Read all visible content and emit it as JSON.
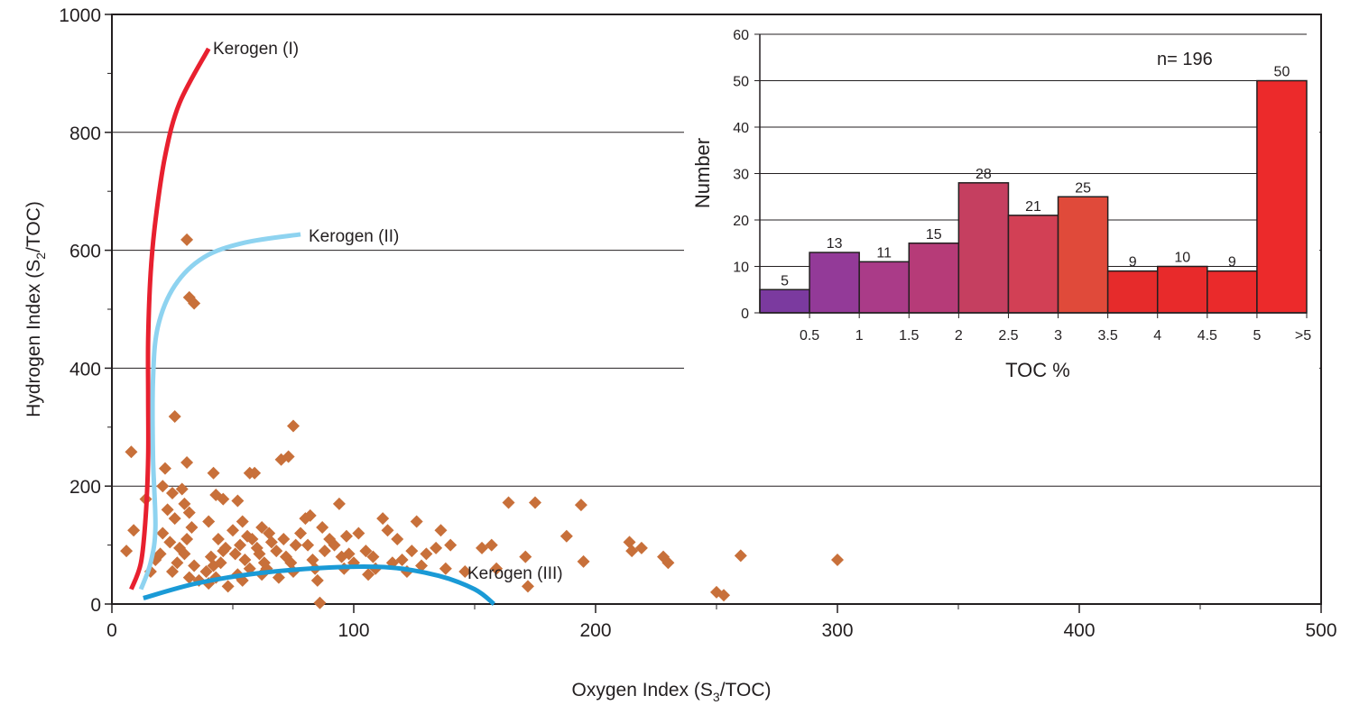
{
  "chart_data": [
    {
      "type": "scatter",
      "xlabel": {
        "prefix": "Oxygen Index (S",
        "sub": "3",
        "suffix": "/TOC)"
      },
      "ylabel": {
        "prefix": "Hydrogen Index (S",
        "sub": "2",
        "suffix": "/TOC)"
      },
      "xlim": [
        0,
        500
      ],
      "ylim": [
        0,
        1000
      ],
      "x_ticks": [
        "0",
        "100",
        "200",
        "300",
        "400",
        "500"
      ],
      "y_ticks": [
        "0",
        "200",
        "400",
        "600",
        "800",
        "1000"
      ],
      "grid": "horizontal",
      "marker_color": "#c8703a",
      "points": [
        [
          8,
          258
        ],
        [
          14,
          178
        ],
        [
          9,
          125
        ],
        [
          6,
          90
        ],
        [
          18,
          75
        ],
        [
          16,
          55
        ],
        [
          22,
          230
        ],
        [
          21,
          200
        ],
        [
          25,
          188
        ],
        [
          23,
          160
        ],
        [
          26,
          145
        ],
        [
          21,
          120
        ],
        [
          24,
          105
        ],
        [
          28,
          95
        ],
        [
          20,
          85
        ],
        [
          27,
          70
        ],
        [
          25,
          55
        ],
        [
          31,
          240
        ],
        [
          29,
          195
        ],
        [
          30,
          170
        ],
        [
          32,
          155
        ],
        [
          33,
          130
        ],
        [
          31,
          110
        ],
        [
          30,
          85
        ],
        [
          34,
          65
        ],
        [
          32,
          45
        ],
        [
          36,
          40
        ],
        [
          42,
          222
        ],
        [
          43,
          185
        ],
        [
          46,
          178
        ],
        [
          40,
          140
        ],
        [
          44,
          110
        ],
        [
          47,
          95
        ],
        [
          41,
          80
        ],
        [
          45,
          70
        ],
        [
          39,
          55
        ],
        [
          43,
          45
        ],
        [
          48,
          30
        ],
        [
          40,
          35
        ],
        [
          42,
          65
        ],
        [
          46,
          90
        ],
        [
          52,
          175
        ],
        [
          54,
          140
        ],
        [
          50,
          125
        ],
        [
          56,
          115
        ],
        [
          53,
          100
        ],
        [
          51,
          85
        ],
        [
          55,
          75
        ],
        [
          57,
          60
        ],
        [
          52,
          50
        ],
        [
          54,
          40
        ],
        [
          58,
          110
        ],
        [
          60,
          95
        ],
        [
          57,
          222
        ],
        [
          59,
          222
        ],
        [
          62,
          130
        ],
        [
          61,
          85
        ],
        [
          63,
          70
        ],
        [
          65,
          120
        ],
        [
          66,
          105
        ],
        [
          68,
          90
        ],
        [
          64,
          60
        ],
        [
          62,
          50
        ],
        [
          69,
          45
        ],
        [
          70,
          245
        ],
        [
          73,
          250
        ],
        [
          71,
          110
        ],
        [
          72,
          80
        ],
        [
          74,
          70
        ],
        [
          75,
          55
        ],
        [
          76,
          100
        ],
        [
          78,
          120
        ],
        [
          75,
          302
        ],
        [
          80,
          145
        ],
        [
          82,
          150
        ],
        [
          81,
          100
        ],
        [
          83,
          75
        ],
        [
          84,
          60
        ],
        [
          85,
          40
        ],
        [
          87,
          130
        ],
        [
          88,
          90
        ],
        [
          86,
          2
        ],
        [
          90,
          110
        ],
        [
          92,
          100
        ],
        [
          94,
          170
        ],
        [
          95,
          80
        ],
        [
          96,
          60
        ],
        [
          98,
          85
        ],
        [
          97,
          115
        ],
        [
          100,
          70
        ],
        [
          102,
          120
        ],
        [
          105,
          90
        ],
        [
          108,
          80
        ],
        [
          106,
          50
        ],
        [
          109,
          60
        ],
        [
          112,
          145
        ],
        [
          114,
          125
        ],
        [
          116,
          70
        ],
        [
          118,
          110
        ],
        [
          120,
          75
        ],
        [
          122,
          55
        ],
        [
          124,
          90
        ],
        [
          126,
          140
        ],
        [
          128,
          65
        ],
        [
          130,
          85
        ],
        [
          134,
          95
        ],
        [
          136,
          125
        ],
        [
          138,
          60
        ],
        [
          140,
          100
        ],
        [
          146,
          55
        ],
        [
          153,
          95
        ],
        [
          157,
          100
        ],
        [
          159,
          60
        ],
        [
          164,
          172
        ],
        [
          175,
          172
        ],
        [
          171,
          80
        ],
        [
          172,
          30
        ],
        [
          188,
          115
        ],
        [
          194,
          168
        ],
        [
          195,
          72
        ],
        [
          214,
          105
        ],
        [
          215,
          90
        ],
        [
          219,
          95
        ],
        [
          228,
          80
        ],
        [
          230,
          70
        ],
        [
          250,
          20
        ],
        [
          253,
          15
        ],
        [
          260,
          82
        ],
        [
          300,
          75
        ],
        [
          31,
          618
        ],
        [
          32,
          520
        ],
        [
          34,
          510
        ],
        [
          26,
          318
        ]
      ],
      "curves": [
        {
          "label": "Kerogen (I)",
          "color": "#e8202f",
          "points": [
            [
              8,
              25
            ],
            [
              12,
              70
            ],
            [
              14,
              150
            ],
            [
              15,
              250
            ],
            [
              15,
              350
            ],
            [
              15,
              450
            ],
            [
              16,
              560
            ],
            [
              18,
              650
            ],
            [
              22,
              760
            ],
            [
              28,
              850
            ],
            [
              40,
              942
            ]
          ]
        },
        {
          "label": "Kerogen (II)",
          "color": "#8ed3f0",
          "points": [
            [
              12,
              25
            ],
            [
              16,
              70
            ],
            [
              18,
              130
            ],
            [
              17,
              250
            ],
            [
              17,
              380
            ],
            [
              19,
              470
            ],
            [
              26,
              540
            ],
            [
              38,
              588
            ],
            [
              55,
              613
            ],
            [
              78,
              627
            ]
          ]
        },
        {
          "label": "Kerogen (III)",
          "color": "#1a9ad6",
          "points": [
            [
              13,
              10
            ],
            [
              35,
              35
            ],
            [
              60,
              52
            ],
            [
              90,
              62
            ],
            [
              115,
              62
            ],
            [
              135,
              48
            ],
            [
              150,
              25
            ],
            [
              158,
              0
            ]
          ]
        }
      ]
    },
    {
      "type": "bar",
      "ylabel": "Number",
      "xlabel": "TOC %",
      "annotation": "n= 196",
      "ylim": [
        0,
        60
      ],
      "y_ticks": [
        "0",
        "10",
        "20",
        "30",
        "40",
        "50",
        "60"
      ],
      "grid": "horizontal",
      "x_tick_labels": [
        "0.5",
        "1",
        "1.5",
        "2",
        "2.5",
        "3",
        "3.5",
        "4",
        "4.5",
        "5",
        ">5"
      ],
      "values": [
        5,
        13,
        11,
        15,
        28,
        21,
        25,
        9,
        10,
        9,
        50
      ],
      "value_labels": [
        "5",
        "13",
        "11",
        "15",
        "28",
        "21",
        "25",
        "9",
        "10",
        "9",
        "50"
      ],
      "colors": [
        "#7b3a9f",
        "#933a98",
        "#aa3b88",
        "#b63b78",
        "#c53f60",
        "#d24055",
        "#e04a3a",
        "#e62b2b",
        "#e82a2b",
        "#ea2a2b",
        "#ec2a2b"
      ]
    }
  ]
}
